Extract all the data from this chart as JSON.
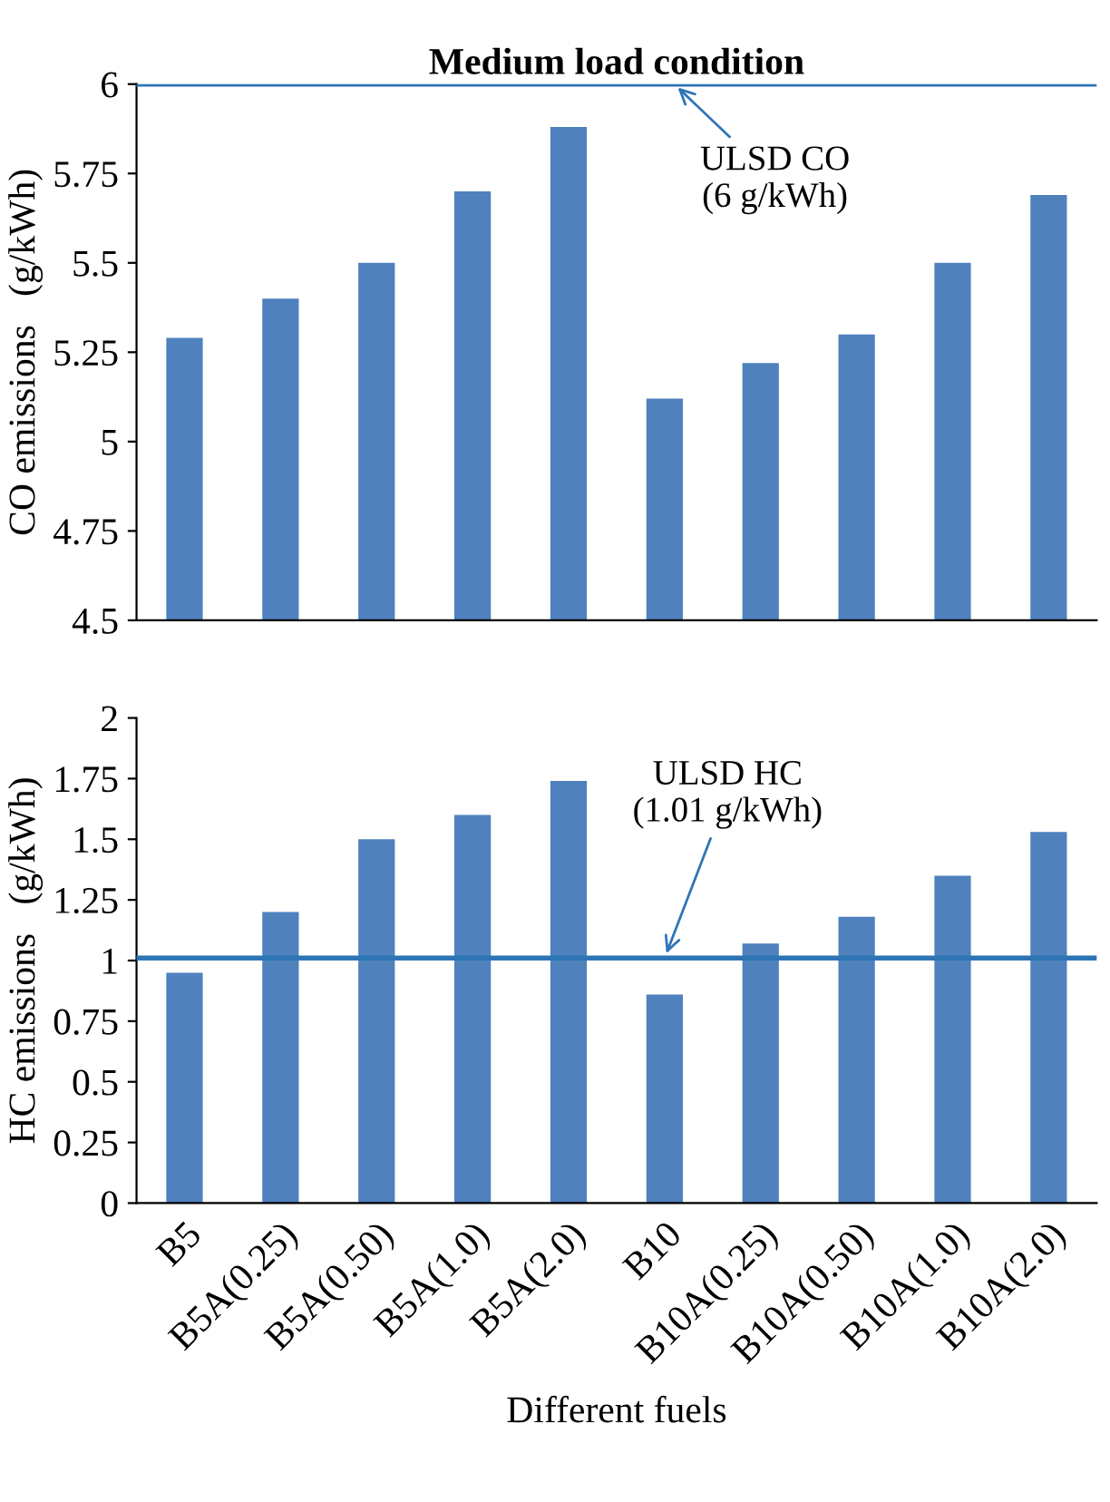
{
  "chart_data": [
    {
      "type": "bar",
      "title": "Medium load condition",
      "ylabel": "CO emissions   (g/kWh)",
      "categories": [
        null,
        null,
        null,
        null,
        null,
        null,
        null,
        null,
        null,
        null
      ],
      "values": [
        5.29,
        5.4,
        5.5,
        5.7,
        5.88,
        5.12,
        5.22,
        5.3,
        5.5,
        5.69
      ],
      "color": "#4f81bd",
      "ylim": [
        4.5,
        6
      ],
      "yticks": [
        4.5,
        4.75,
        5,
        5.25,
        5.5,
        5.75,
        6
      ],
      "ref_lines": [
        {
          "axis": "y",
          "value": 6,
          "label": "ULSD CO\n(6 g/kWh)",
          "color": "#2e75b6"
        }
      ],
      "tick_labels": "y",
      "grid": false
    },
    {
      "type": "bar",
      "ylabel": "HC emissions   (g/kWh)",
      "xlabel": "Different fuels",
      "categories": [
        "B5",
        "B5A(0.25)",
        "B5A(0.50)",
        "B5A(1.0)",
        "B5A(2.0)",
        "B10",
        "B10A(0.25)",
        "B10A(0.50)",
        "B10A(1.0)",
        "B10A(2.0)"
      ],
      "values": [
        0.95,
        1.2,
        1.5,
        1.6,
        1.74,
        0.86,
        1.07,
        1.18,
        1.35,
        1.53
      ],
      "color": "#4f81bd",
      "ylim": [
        0,
        2
      ],
      "yticks": [
        0,
        0.25,
        0.5,
        0.75,
        1,
        1.25,
        1.5,
        1.75,
        2
      ],
      "ref_lines": [
        {
          "axis": "y",
          "value": 1.01,
          "label": "ULSD HC\n(1.01 g/kWh)",
          "color": "#2e75b6"
        }
      ],
      "grid": false
    }
  ]
}
